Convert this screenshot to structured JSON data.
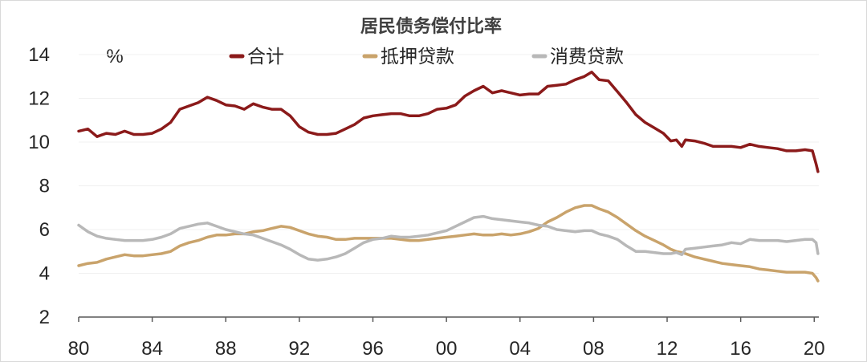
{
  "chart_data": {
    "type": "line",
    "title": "居民债务偿付比率",
    "unit_label": "%",
    "xlabel": "",
    "ylabel": "",
    "xlim": [
      1980,
      2020.25
    ],
    "ylim": [
      2,
      14
    ],
    "yticks": [
      2,
      4,
      6,
      8,
      10,
      12,
      14
    ],
    "xticks": [
      {
        "value": 1980,
        "label": "80"
      },
      {
        "value": 1984,
        "label": "84"
      },
      {
        "value": 1988,
        "label": "88"
      },
      {
        "value": 1992,
        "label": "92"
      },
      {
        "value": 1996,
        "label": "96"
      },
      {
        "value": 2000,
        "label": "00"
      },
      {
        "value": 2004,
        "label": "04"
      },
      {
        "value": 2008,
        "label": "08"
      },
      {
        "value": 2012,
        "label": "12"
      },
      {
        "value": 2016,
        "label": "16"
      },
      {
        "value": 2020,
        "label": "20"
      }
    ],
    "grid": "horizontal",
    "legend_position": "top",
    "series": [
      {
        "name": "合计",
        "color": "#8b1a1a",
        "points": [
          [
            1980,
            10.5
          ],
          [
            1980.5,
            10.6
          ],
          [
            1981,
            10.25
          ],
          [
            1981.5,
            10.4
          ],
          [
            1982,
            10.35
          ],
          [
            1982.5,
            10.5
          ],
          [
            1983,
            10.35
          ],
          [
            1983.5,
            10.35
          ],
          [
            1984,
            10.4
          ],
          [
            1984.5,
            10.6
          ],
          [
            1985,
            10.9
          ],
          [
            1985.5,
            11.5
          ],
          [
            1986,
            11.65
          ],
          [
            1986.5,
            11.8
          ],
          [
            1987,
            12.05
          ],
          [
            1987.5,
            11.9
          ],
          [
            1988,
            11.7
          ],
          [
            1988.5,
            11.65
          ],
          [
            1989,
            11.5
          ],
          [
            1989.5,
            11.75
          ],
          [
            1990,
            11.6
          ],
          [
            1990.5,
            11.5
          ],
          [
            1991,
            11.5
          ],
          [
            1991.5,
            11.2
          ],
          [
            1992,
            10.7
          ],
          [
            1992.5,
            10.45
          ],
          [
            1993,
            10.35
          ],
          [
            1993.5,
            10.35
          ],
          [
            1994,
            10.4
          ],
          [
            1994.5,
            10.6
          ],
          [
            1995,
            10.8
          ],
          [
            1995.5,
            11.1
          ],
          [
            1996,
            11.2
          ],
          [
            1996.5,
            11.25
          ],
          [
            1997,
            11.3
          ],
          [
            1997.5,
            11.3
          ],
          [
            1998,
            11.2
          ],
          [
            1998.5,
            11.2
          ],
          [
            1999,
            11.3
          ],
          [
            1999.5,
            11.5
          ],
          [
            2000,
            11.55
          ],
          [
            2000.5,
            11.7
          ],
          [
            2001,
            12.1
          ],
          [
            2001.5,
            12.35
          ],
          [
            2002,
            12.55
          ],
          [
            2002.5,
            12.25
          ],
          [
            2003,
            12.35
          ],
          [
            2003.5,
            12.25
          ],
          [
            2004,
            12.15
          ],
          [
            2004.5,
            12.2
          ],
          [
            2005,
            12.2
          ],
          [
            2005.5,
            12.55
          ],
          [
            2006,
            12.6
          ],
          [
            2006.5,
            12.65
          ],
          [
            2007,
            12.85
          ],
          [
            2007.5,
            13.0
          ],
          [
            2007.9,
            13.2
          ],
          [
            2008.3,
            12.85
          ],
          [
            2008.8,
            12.8
          ],
          [
            2009.3,
            12.3
          ],
          [
            2009.8,
            11.8
          ],
          [
            2010.3,
            11.25
          ],
          [
            2010.8,
            10.9
          ],
          [
            2011.3,
            10.65
          ],
          [
            2011.8,
            10.4
          ],
          [
            2012.2,
            10.05
          ],
          [
            2012.5,
            10.1
          ],
          [
            2012.8,
            9.8
          ],
          [
            2013,
            10.1
          ],
          [
            2013.5,
            10.05
          ],
          [
            2014,
            9.95
          ],
          [
            2014.5,
            9.8
          ],
          [
            2015,
            9.8
          ],
          [
            2015.5,
            9.8
          ],
          [
            2016,
            9.75
          ],
          [
            2016.5,
            9.9
          ],
          [
            2017,
            9.8
          ],
          [
            2017.5,
            9.75
          ],
          [
            2018,
            9.7
          ],
          [
            2018.5,
            9.6
          ],
          [
            2019,
            9.6
          ],
          [
            2019.5,
            9.65
          ],
          [
            2019.9,
            9.6
          ],
          [
            2020.1,
            9.0
          ],
          [
            2020.2,
            8.65
          ]
        ]
      },
      {
        "name": "抵押贷款",
        "color": "#c9a36b",
        "points": [
          [
            1980,
            4.35
          ],
          [
            1980.5,
            4.45
          ],
          [
            1981,
            4.5
          ],
          [
            1981.5,
            4.65
          ],
          [
            1982,
            4.75
          ],
          [
            1982.5,
            4.85
          ],
          [
            1983,
            4.8
          ],
          [
            1983.5,
            4.8
          ],
          [
            1984,
            4.85
          ],
          [
            1984.5,
            4.9
          ],
          [
            1985,
            5.0
          ],
          [
            1985.5,
            5.25
          ],
          [
            1986,
            5.4
          ],
          [
            1986.5,
            5.5
          ],
          [
            1987,
            5.65
          ],
          [
            1987.5,
            5.75
          ],
          [
            1988,
            5.75
          ],
          [
            1988.5,
            5.8
          ],
          [
            1989,
            5.8
          ],
          [
            1989.5,
            5.9
          ],
          [
            1990,
            5.95
          ],
          [
            1990.5,
            6.05
          ],
          [
            1991,
            6.15
          ],
          [
            1991.5,
            6.1
          ],
          [
            1992,
            5.95
          ],
          [
            1992.5,
            5.8
          ],
          [
            1993,
            5.7
          ],
          [
            1993.5,
            5.65
          ],
          [
            1994,
            5.55
          ],
          [
            1994.5,
            5.55
          ],
          [
            1995,
            5.6
          ],
          [
            1995.5,
            5.6
          ],
          [
            1996,
            5.6
          ],
          [
            1996.5,
            5.6
          ],
          [
            1997,
            5.6
          ],
          [
            1997.5,
            5.55
          ],
          [
            1998,
            5.5
          ],
          [
            1998.5,
            5.5
          ],
          [
            1999,
            5.55
          ],
          [
            1999.5,
            5.6
          ],
          [
            2000,
            5.65
          ],
          [
            2000.5,
            5.7
          ],
          [
            2001,
            5.75
          ],
          [
            2001.5,
            5.8
          ],
          [
            2002,
            5.75
          ],
          [
            2002.5,
            5.75
          ],
          [
            2003,
            5.8
          ],
          [
            2003.5,
            5.75
          ],
          [
            2004,
            5.8
          ],
          [
            2004.5,
            5.9
          ],
          [
            2005,
            6.05
          ],
          [
            2005.5,
            6.35
          ],
          [
            2006,
            6.55
          ],
          [
            2006.5,
            6.8
          ],
          [
            2007,
            7.0
          ],
          [
            2007.5,
            7.1
          ],
          [
            2007.9,
            7.1
          ],
          [
            2008.3,
            6.95
          ],
          [
            2008.8,
            6.8
          ],
          [
            2009.3,
            6.55
          ],
          [
            2009.8,
            6.25
          ],
          [
            2010.3,
            5.95
          ],
          [
            2010.8,
            5.7
          ],
          [
            2011.3,
            5.5
          ],
          [
            2011.8,
            5.3
          ],
          [
            2012.2,
            5.1
          ],
          [
            2012.5,
            5.0
          ],
          [
            2012.8,
            4.95
          ],
          [
            2013,
            4.9
          ],
          [
            2013.5,
            4.75
          ],
          [
            2014,
            4.65
          ],
          [
            2014.5,
            4.55
          ],
          [
            2015,
            4.45
          ],
          [
            2015.5,
            4.4
          ],
          [
            2016,
            4.35
          ],
          [
            2016.5,
            4.3
          ],
          [
            2017,
            4.2
          ],
          [
            2017.5,
            4.15
          ],
          [
            2018,
            4.1
          ],
          [
            2018.5,
            4.05
          ],
          [
            2019,
            4.05
          ],
          [
            2019.5,
            4.05
          ],
          [
            2019.9,
            4.0
          ],
          [
            2020.1,
            3.8
          ],
          [
            2020.2,
            3.65
          ]
        ]
      },
      {
        "name": "消费贷款",
        "color": "#b8b8b8",
        "points": [
          [
            1980,
            6.2
          ],
          [
            1980.5,
            5.9
          ],
          [
            1981,
            5.7
          ],
          [
            1981.5,
            5.6
          ],
          [
            1982,
            5.55
          ],
          [
            1982.5,
            5.5
          ],
          [
            1983,
            5.5
          ],
          [
            1983.5,
            5.5
          ],
          [
            1984,
            5.55
          ],
          [
            1984.5,
            5.65
          ],
          [
            1985,
            5.8
          ],
          [
            1985.5,
            6.05
          ],
          [
            1986,
            6.15
          ],
          [
            1986.5,
            6.25
          ],
          [
            1987,
            6.3
          ],
          [
            1987.5,
            6.15
          ],
          [
            1988,
            6.0
          ],
          [
            1988.5,
            5.9
          ],
          [
            1989,
            5.8
          ],
          [
            1989.5,
            5.75
          ],
          [
            1990,
            5.6
          ],
          [
            1990.5,
            5.45
          ],
          [
            1991,
            5.3
          ],
          [
            1991.5,
            5.1
          ],
          [
            1992,
            4.85
          ],
          [
            1992.5,
            4.65
          ],
          [
            1993,
            4.6
          ],
          [
            1993.5,
            4.65
          ],
          [
            1994,
            4.75
          ],
          [
            1994.5,
            4.9
          ],
          [
            1995,
            5.15
          ],
          [
            1995.5,
            5.4
          ],
          [
            1996,
            5.55
          ],
          [
            1996.5,
            5.6
          ],
          [
            1997,
            5.7
          ],
          [
            1997.5,
            5.65
          ],
          [
            1998,
            5.65
          ],
          [
            1998.5,
            5.7
          ],
          [
            1999,
            5.75
          ],
          [
            1999.5,
            5.85
          ],
          [
            2000,
            5.95
          ],
          [
            2000.5,
            6.15
          ],
          [
            2001,
            6.35
          ],
          [
            2001.5,
            6.55
          ],
          [
            2002,
            6.6
          ],
          [
            2002.5,
            6.5
          ],
          [
            2003,
            6.45
          ],
          [
            2003.5,
            6.4
          ],
          [
            2004,
            6.35
          ],
          [
            2004.5,
            6.3
          ],
          [
            2005,
            6.2
          ],
          [
            2005.5,
            6.15
          ],
          [
            2006,
            6.0
          ],
          [
            2006.5,
            5.95
          ],
          [
            2007,
            5.9
          ],
          [
            2007.5,
            5.95
          ],
          [
            2007.9,
            5.95
          ],
          [
            2008.3,
            5.8
          ],
          [
            2008.8,
            5.7
          ],
          [
            2009.3,
            5.55
          ],
          [
            2009.8,
            5.25
          ],
          [
            2010.3,
            5.0
          ],
          [
            2010.8,
            5.0
          ],
          [
            2011.3,
            4.95
          ],
          [
            2011.8,
            4.9
          ],
          [
            2012.2,
            4.9
          ],
          [
            2012.5,
            4.95
          ],
          [
            2012.8,
            4.85
          ],
          [
            2013,
            5.1
          ],
          [
            2013.5,
            5.15
          ],
          [
            2014,
            5.2
          ],
          [
            2014.5,
            5.25
          ],
          [
            2015,
            5.3
          ],
          [
            2015.5,
            5.4
          ],
          [
            2016,
            5.35
          ],
          [
            2016.5,
            5.55
          ],
          [
            2017,
            5.5
          ],
          [
            2017.5,
            5.5
          ],
          [
            2018,
            5.5
          ],
          [
            2018.5,
            5.45
          ],
          [
            2019,
            5.5
          ],
          [
            2019.5,
            5.55
          ],
          [
            2019.9,
            5.55
          ],
          [
            2020.1,
            5.4
          ],
          [
            2020.2,
            4.9
          ]
        ]
      }
    ]
  }
}
